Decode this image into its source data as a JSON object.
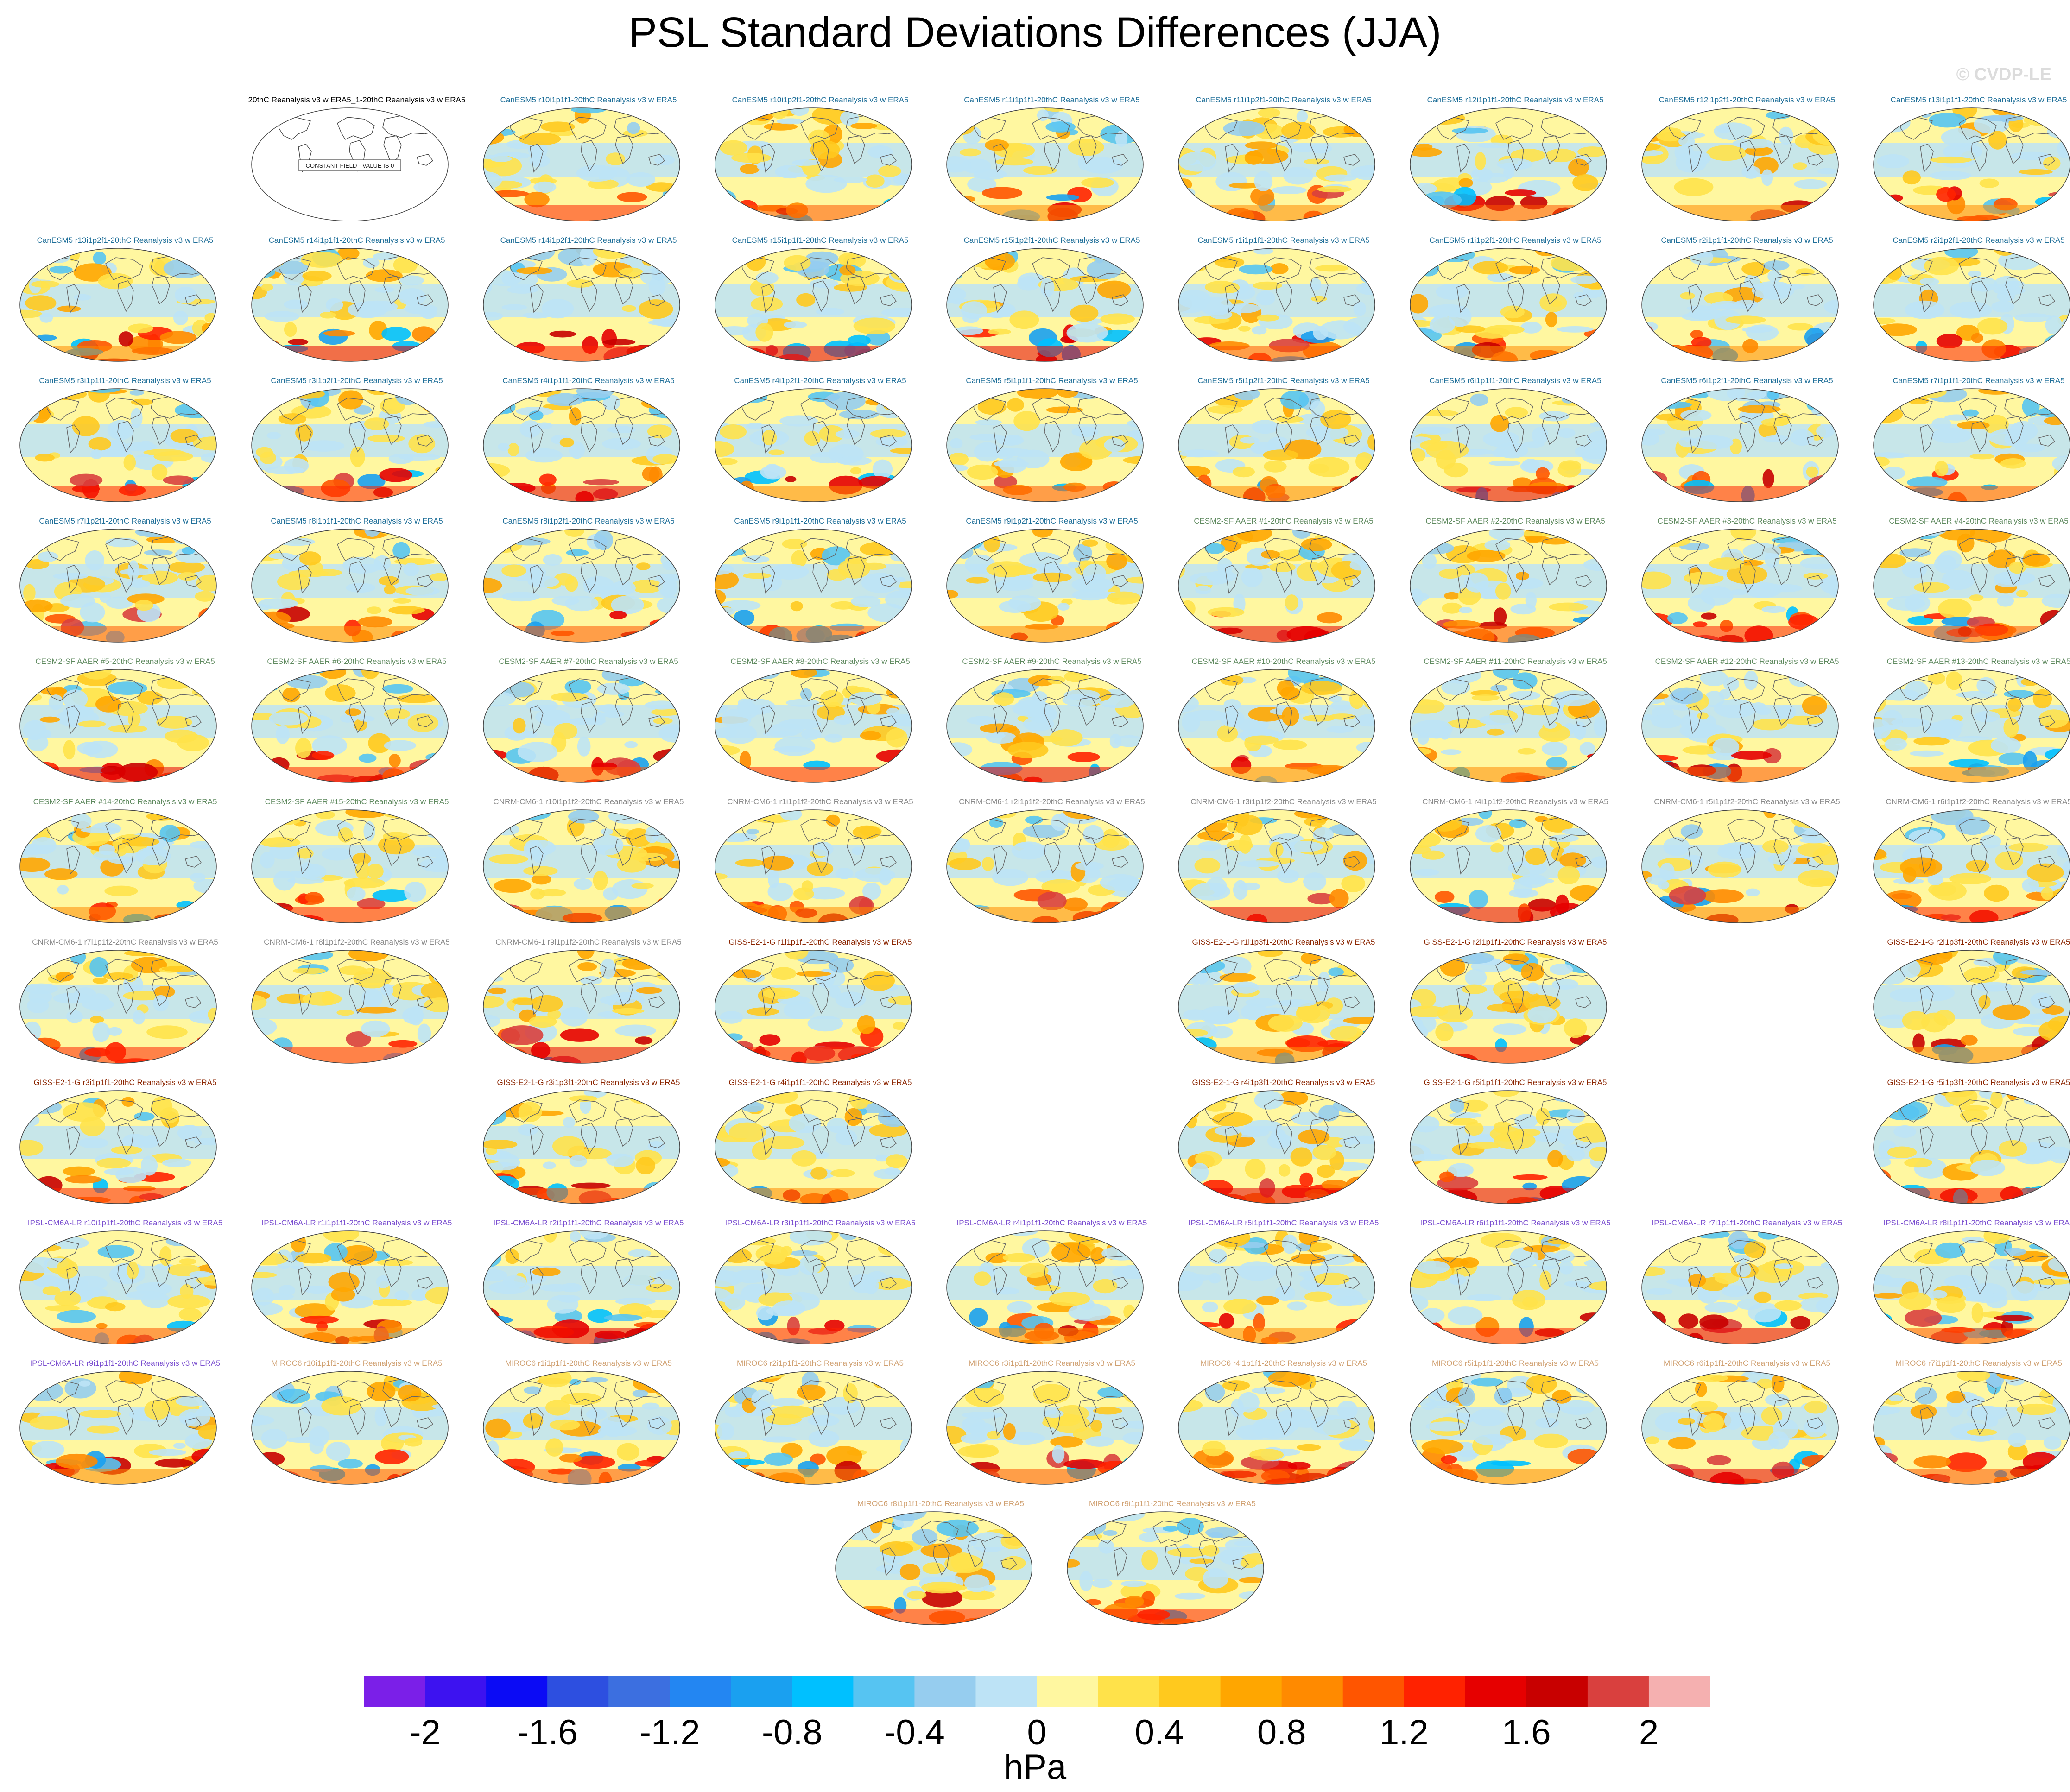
{
  "title": "PSL Standard Deviations Differences (JJA)",
  "watermark": "© CVDP-LE",
  "colorbar": {
    "unit": "hPa",
    "tick_labels": [
      "-2",
      "-1.6",
      "-1.2",
      "-0.8",
      "-0.4",
      "0",
      "0.4",
      "0.8",
      "1.2",
      "1.6",
      "2"
    ],
    "colors": [
      "#7b1fe8",
      "#3d12f0",
      "#0b0bf5",
      "#2d4fe0",
      "#3c6fe0",
      "#2386f2",
      "#1aa0f0",
      "#00c0ff",
      "#56c4f2",
      "#96cdef",
      "#bde3f6",
      "#fff7a0",
      "#ffe24a",
      "#ffc91e",
      "#ffa600",
      "#ff8a00",
      "#ff5500",
      "#ff2200",
      "#e60000",
      "#c80000",
      "#d9403e",
      "#f5b0b0"
    ]
  },
  "chart_data": {
    "type": "map-grid",
    "title": "PSL Standard Deviations Differences (JJA)",
    "colorbar_unit": "hPa",
    "colorbar_range": [
      -2.2,
      2.2
    ],
    "colorbar_interval": 0.2,
    "annotation": "CONSTANT FIELD - VALUE IS 0",
    "panel_rows": [
      [
        "",
        "20thC Reanalysis v3 w ERA5_1-20thC Reanalysis v3 w ERA5",
        "CanESM5 r10i1p1f1-20thC Reanalysis v3 w ERA5",
        "CanESM5 r10i1p2f1-20thC Reanalysis v3 w ERA5",
        "CanESM5 r11i1p1f1-20thC Reanalysis v3 w ERA5",
        "CanESM5 r11i1p2f1-20thC Reanalysis v3 w ERA5",
        "CanESM5 r12i1p1f1-20thC Reanalysis v3 w ERA5",
        "CanESM5 r12i1p2f1-20thC Reanalysis v3 w ERA5",
        "CanESM5 r13i1p1f1-20thC Reanalysis v3 w ERA5"
      ],
      [
        "CanESM5 r13i1p2f1-20thC Reanalysis v3 w ERA5",
        "CanESM5 r14i1p1f1-20thC Reanalysis v3 w ERA5",
        "CanESM5 r14i1p2f1-20thC Reanalysis v3 w ERA5",
        "CanESM5 r15i1p1f1-20thC Reanalysis v3 w ERA5",
        "CanESM5 r15i1p2f1-20thC Reanalysis v3 w ERA5",
        "CanESM5 r1i1p1f1-20thC Reanalysis v3 w ERA5",
        "CanESM5 r1i1p2f1-20thC Reanalysis v3 w ERA5",
        "CanESM5 r2i1p1f1-20thC Reanalysis v3 w ERA5",
        "CanESM5 r2i1p2f1-20thC Reanalysis v3 w ERA5"
      ],
      [
        "CanESM5 r3i1p1f1-20thC Reanalysis v3 w ERA5",
        "CanESM5 r3i1p2f1-20thC Reanalysis v3 w ERA5",
        "CanESM5 r4i1p1f1-20thC Reanalysis v3 w ERA5",
        "CanESM5 r4i1p2f1-20thC Reanalysis v3 w ERA5",
        "CanESM5 r5i1p1f1-20thC Reanalysis v3 w ERA5",
        "CanESM5 r5i1p2f1-20thC Reanalysis v3 w ERA5",
        "CanESM5 r6i1p1f1-20thC Reanalysis v3 w ERA5",
        "CanESM5 r6i1p2f1-20thC Reanalysis v3 w ERA5",
        "CanESM5 r7i1p1f1-20thC Reanalysis v3 w ERA5"
      ],
      [
        "CanESM5 r7i1p2f1-20thC Reanalysis v3 w ERA5",
        "CanESM5 r8i1p1f1-20thC Reanalysis v3 w ERA5",
        "CanESM5 r8i1p2f1-20thC Reanalysis v3 w ERA5",
        "CanESM5 r9i1p1f1-20thC Reanalysis v3 w ERA5",
        "CanESM5 r9i1p2f1-20thC Reanalysis v3 w ERA5",
        "CESM2-SF AAER #1-20thC Reanalysis v3 w ERA5",
        "CESM2-SF AAER #2-20thC Reanalysis v3 w ERA5",
        "CESM2-SF AAER #3-20thC Reanalysis v3 w ERA5",
        "CESM2-SF AAER #4-20thC Reanalysis v3 w ERA5"
      ],
      [
        "CESM2-SF AAER #5-20thC Reanalysis v3 w ERA5",
        "CESM2-SF AAER #6-20thC Reanalysis v3 w ERA5",
        "CESM2-SF AAER #7-20thC Reanalysis v3 w ERA5",
        "CESM2-SF AAER #8-20thC Reanalysis v3 w ERA5",
        "CESM2-SF AAER #9-20thC Reanalysis v3 w ERA5",
        "CESM2-SF AAER #10-20thC Reanalysis v3 w ERA5",
        "CESM2-SF AAER #11-20thC Reanalysis v3 w ERA5",
        "CESM2-SF AAER #12-20thC Reanalysis v3 w ERA5",
        "CESM2-SF AAER #13-20thC Reanalysis v3 w ERA5"
      ],
      [
        "CESM2-SF AAER #14-20thC Reanalysis v3 w ERA5",
        "CESM2-SF AAER #15-20thC Reanalysis v3 w ERA5",
        "CNRM-CM6-1 r10i1p1f2-20thC Reanalysis v3 w ERA5",
        "CNRM-CM6-1 r1i1p1f2-20thC Reanalysis v3 w ERA5",
        "CNRM-CM6-1 r2i1p1f2-20thC Reanalysis v3 w ERA5",
        "CNRM-CM6-1 r3i1p1f2-20thC Reanalysis v3 w ERA5",
        "CNRM-CM6-1 r4i1p1f2-20thC Reanalysis v3 w ERA5",
        "CNRM-CM6-1 r5i1p1f2-20thC Reanalysis v3 w ERA5",
        "CNRM-CM6-1 r6i1p1f2-20thC Reanalysis v3 w ERA5"
      ],
      [
        "CNRM-CM6-1 r7i1p1f2-20thC Reanalysis v3 w ERA5",
        "CNRM-CM6-1 r8i1p1f2-20thC Reanalysis v3 w ERA5",
        "CNRM-CM6-1 r9i1p1f2-20thC Reanalysis v3 w ERA5",
        "GISS-E2-1-G r1i1p1f1-20thC Reanalysis v3 w ERA5",
        "",
        "GISS-E2-1-G r1i1p3f1-20thC Reanalysis v3 w ERA5",
        "GISS-E2-1-G r2i1p1f1-20thC Reanalysis v3 w ERA5",
        "",
        "GISS-E2-1-G r2i1p3f1-20thC Reanalysis v3 w ERA5"
      ],
      [
        "GISS-E2-1-G r3i1p1f1-20thC Reanalysis v3 w ERA5",
        "",
        "GISS-E2-1-G r3i1p3f1-20thC Reanalysis v3 w ERA5",
        "GISS-E2-1-G r4i1p1f1-20thC Reanalysis v3 w ERA5",
        "",
        "GISS-E2-1-G r4i1p3f1-20thC Reanalysis v3 w ERA5",
        "GISS-E2-1-G r5i1p1f1-20thC Reanalysis v3 w ERA5",
        "",
        "GISS-E2-1-G r5i1p3f1-20thC Reanalysis v3 w ERA5"
      ],
      [
        "IPSL-CM6A-LR r10i1p1f1-20thC Reanalysis v3 w ERA5",
        "IPSL-CM6A-LR r1i1p1f1-20thC Reanalysis v3 w ERA5",
        "IPSL-CM6A-LR r2i1p1f1-20thC Reanalysis v3 w ERA5",
        "IPSL-CM6A-LR r3i1p1f1-20thC Reanalysis v3 w ERA5",
        "IPSL-CM6A-LR r4i1p1f1-20thC Reanalysis v3 w ERA5",
        "IPSL-CM6A-LR r5i1p1f1-20thC Reanalysis v3 w ERA5",
        "IPSL-CM6A-LR r6i1p1f1-20thC Reanalysis v3 w ERA5",
        "IPSL-CM6A-LR r7i1p1f1-20thC Reanalysis v3 w ERA5",
        "IPSL-CM6A-LR r8i1p1f1-20thC Reanalysis v3 w ERA5"
      ],
      [
        "IPSL-CM6A-LR r9i1p1f1-20thC Reanalysis v3 w ERA5",
        "MIROC6 r10i1p1f1-20thC Reanalysis v3 w ERA5",
        "MIROC6 r1i1p1f1-20thC Reanalysis v3 w ERA5",
        "MIROC6 r2i1p1f1-20thC Reanalysis v3 w ERA5",
        "MIROC6 r3i1p1f1-20thC Reanalysis v3 w ERA5",
        "MIROC6 r4i1p1f1-20thC Reanalysis v3 w ERA5",
        "MIROC6 r5i1p1f1-20thC Reanalysis v3 w ERA5",
        "MIROC6 r6i1p1f1-20thC Reanalysis v3 w ERA5",
        "MIROC6 r7i1p1f1-20thC Reanalysis v3 w ERA5"
      ],
      [
        "MIROC6 r8i1p1f1-20thC Reanalysis v3 w ERA5",
        "MIROC6 r9i1p1f1-20thC Reanalysis v3 w ERA5"
      ]
    ],
    "model_colors": {
      "20thC": "#000000",
      "CanESM5": "#1f6f99",
      "CESM2-SF": "#5f8a5f",
      "CNRM-CM6-1": "#8a8a8a",
      "GISS-E2-1-G": "#8b2500",
      "IPSL-CM6A-LR": "#7b4fd0",
      "MIROC6": "#d0a070"
    }
  }
}
